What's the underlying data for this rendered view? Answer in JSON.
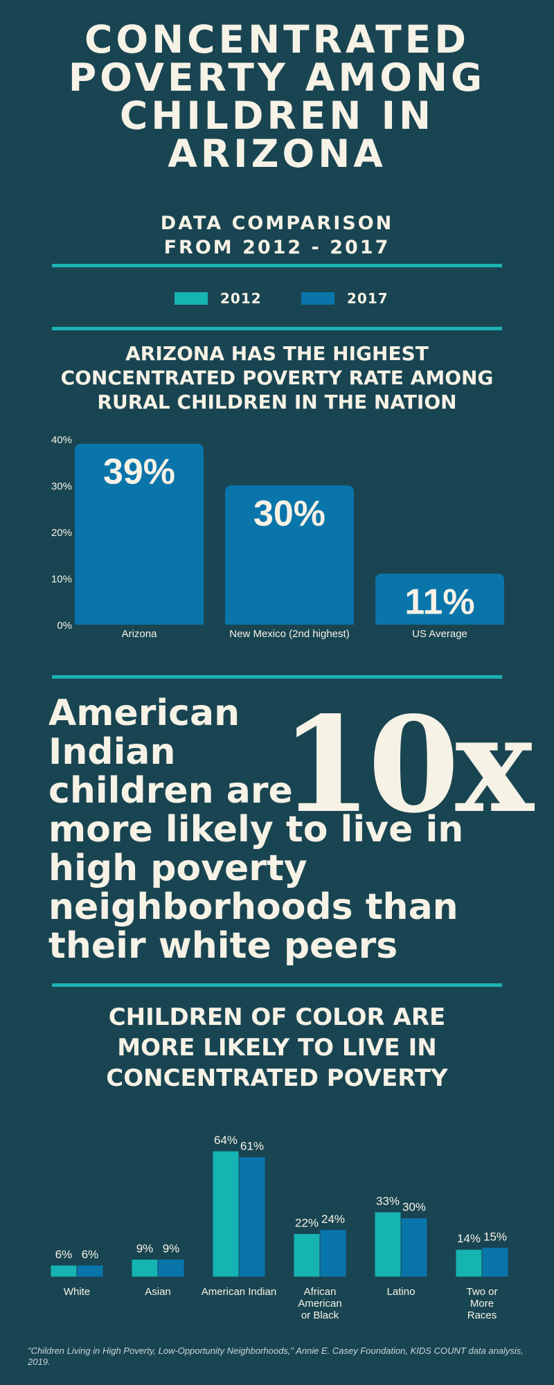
{
  "title_lines": [
    "CONCENTRATED",
    "POVERTY AMONG",
    "CHILDREN IN",
    "ARIZONA"
  ],
  "subtitle_lines": [
    "DATA COMPARISON",
    "FROM 2012 - 2017"
  ],
  "legend": [
    {
      "label": "2012",
      "color": "#16b3b3"
    },
    {
      "label": "2017",
      "color": "#0a75ab"
    }
  ],
  "section1_heading": [
    "ARIZONA HAS THE HIGHEST",
    "CONCENTRATED POVERTY RATE AMONG",
    "RURAL CHILDREN IN THE NATION"
  ],
  "callout": {
    "text_lines": [
      "American",
      "Indian",
      "children are",
      "more likely to live in",
      "high poverty",
      "neighborhoods than",
      "their white peers"
    ],
    "number": "10x"
  },
  "section2_heading": [
    "CHILDREN OF COLOR ARE",
    "MORE LIKELY TO LIVE IN",
    "CONCENTRATED POVERTY"
  ],
  "source": "\"Children Living in High Poverty, Low-Opportunity Neighborhoods,\" Annie E. Casey Foundation, KIDS COUNT data analysis, 2019.",
  "chart_data": [
    {
      "type": "bar",
      "categories": [
        "Arizona",
        "New Mexico (2nd highest)",
        "US Average"
      ],
      "values": [
        39,
        30,
        11
      ],
      "value_labels": [
        "39%",
        "30%",
        "11%"
      ],
      "yticks": [
        "0%",
        "10%",
        "20%",
        "30%",
        "40%"
      ],
      "ylim": [
        0,
        40
      ],
      "color": "#0a75ab",
      "grid": false
    },
    {
      "type": "bar",
      "categories": [
        [
          "White"
        ],
        [
          "Asian"
        ],
        [
          "American Indian"
        ],
        [
          "African",
          "American",
          "or Black"
        ],
        [
          "Latino"
        ],
        [
          "Two or",
          "More",
          "Races"
        ]
      ],
      "series": [
        {
          "name": "2012",
          "values": [
            6,
            9,
            64,
            22,
            33,
            14
          ],
          "labels": [
            "6%",
            "9%",
            "64%",
            "22%",
            "33%",
            "14%"
          ],
          "color": "#16b3b3"
        },
        {
          "name": "2017",
          "values": [
            6,
            9,
            61,
            24,
            30,
            15
          ],
          "labels": [
            "6%",
            "9%",
            "61%",
            "24%",
            "30%",
            "15%"
          ],
          "color": "#0a75ab"
        }
      ],
      "ylim": [
        0,
        64
      ],
      "grid": false
    }
  ]
}
